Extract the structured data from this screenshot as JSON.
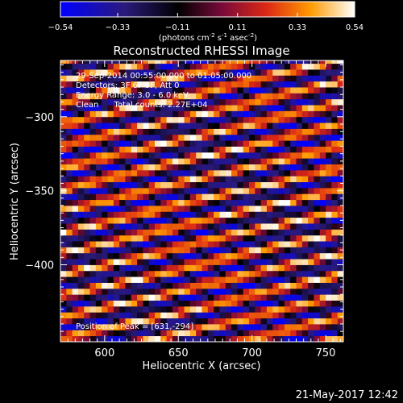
{
  "colorbar": {
    "ticks": [
      "-0.54",
      "-0.33",
      "-0.11",
      "0.11",
      "0.33",
      "0.54"
    ],
    "units_main": "(photons cm",
    "units_sup1": "-2",
    "units_mid1": " s",
    "units_sup2": "-1",
    "units_mid2": " asec",
    "units_sup3": "-2",
    "units_end": ")",
    "colors": [
      "#0000ff",
      "#1a1060",
      "#000000",
      "#5a0a30",
      "#c81e1e",
      "#ff8c00",
      "#ffffff"
    ]
  },
  "chart_data": {
    "type": "heatmap",
    "title": "Reconstructed RHESSI Image",
    "xlabel": "Heliocentric X (arcsec)",
    "ylabel": "Heliocentric Y (arcsec)",
    "xlim": [
      570,
      762
    ],
    "ylim": [
      -452,
      -262
    ],
    "x_ticks": [
      600,
      650,
      700,
      750
    ],
    "y_ticks": [
      -300,
      -350,
      -400
    ],
    "pixel_size_arcsec": 4,
    "pattern": "oblique alternating bright/dark stripes",
    "peak": [
      631,
      -294
    ],
    "value_range": [
      -0.54,
      0.54
    ]
  },
  "annotations": {
    "line1": "29-Sep-2014 00:55:00.000 to 01:05:00.000",
    "line2": "Detectors: 3F 6F 9F, Att 0",
    "line3": "Energy Range: 3.0 - 6.0 keV",
    "line4": "Clean      Total counts: 2.27E+04",
    "peak": "Position of Peak = [631,-294]"
  },
  "footer": {
    "timestamp": "21-May-2017 12:42"
  }
}
